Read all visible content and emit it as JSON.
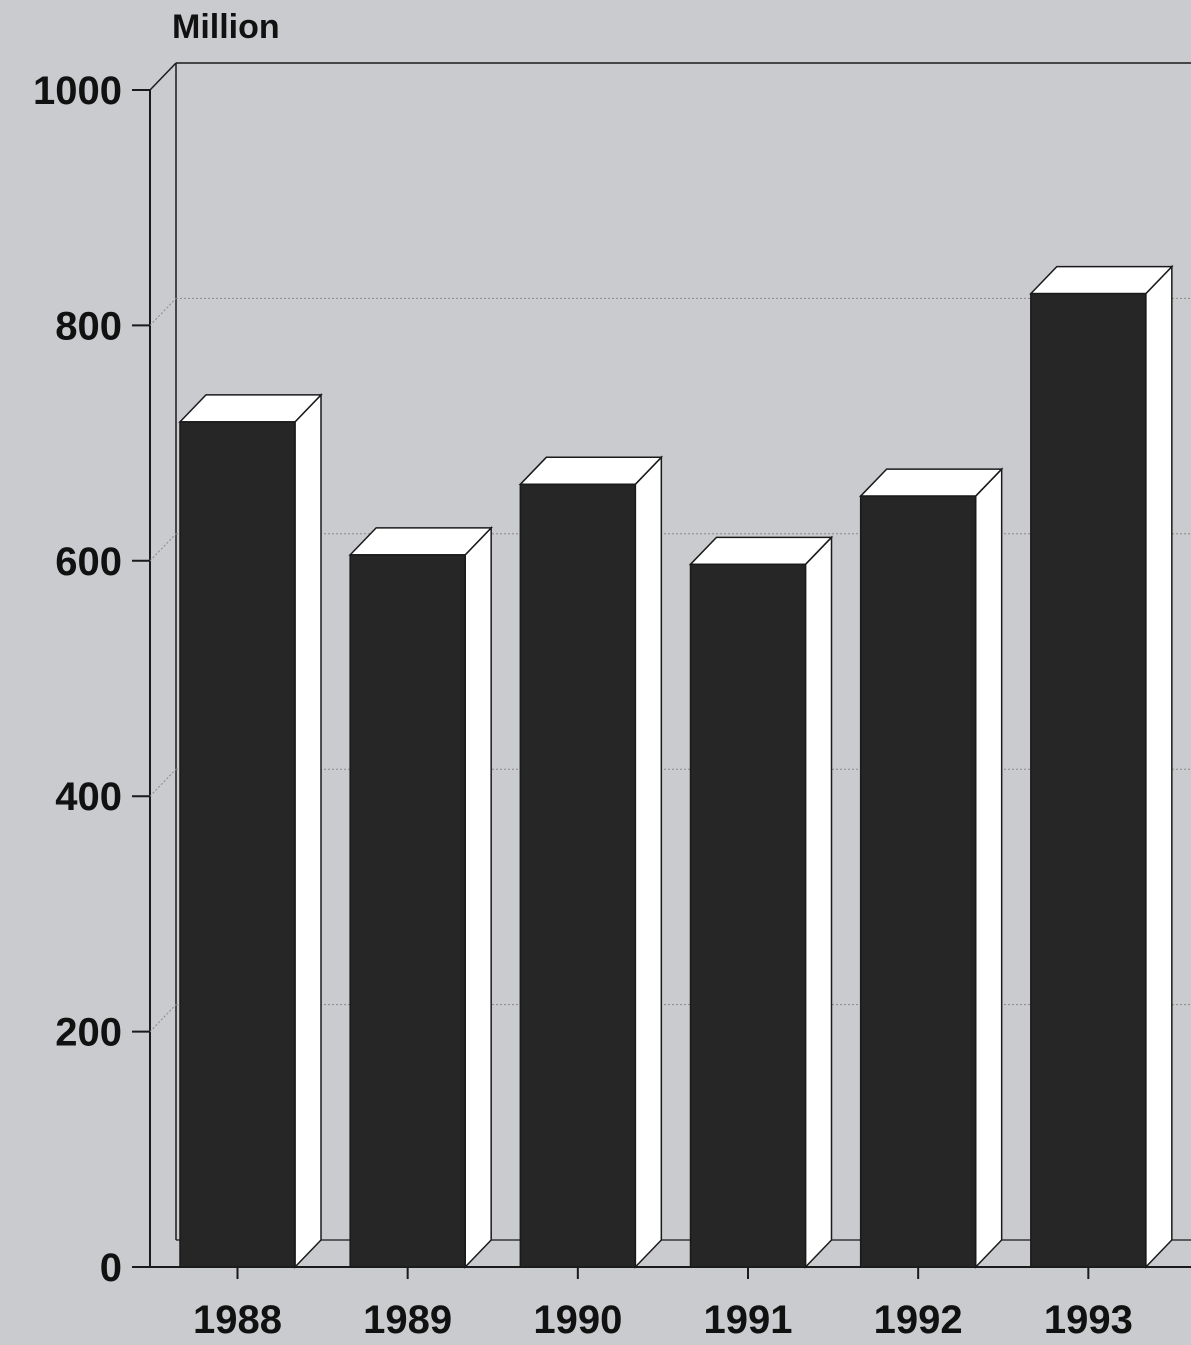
{
  "chart_data": {
    "type": "bar",
    "unit_label": "Million",
    "categories": [
      "1988",
      "1989",
      "1990",
      "1991",
      "1992",
      "1993"
    ],
    "values": [
      718,
      605,
      665,
      597,
      655,
      827
    ],
    "ylim": [
      0,
      1000
    ],
    "yticks": [
      0,
      200,
      400,
      600,
      800,
      1000
    ],
    "grid": true,
    "three_d": true
  },
  "colors": {
    "background": "#c9cbce",
    "bar_front": "#262626",
    "bar_side": "#ffffff",
    "bar_top": "#ffffff",
    "axis": "#1a1a1a",
    "grid": "#8a8a8a"
  }
}
